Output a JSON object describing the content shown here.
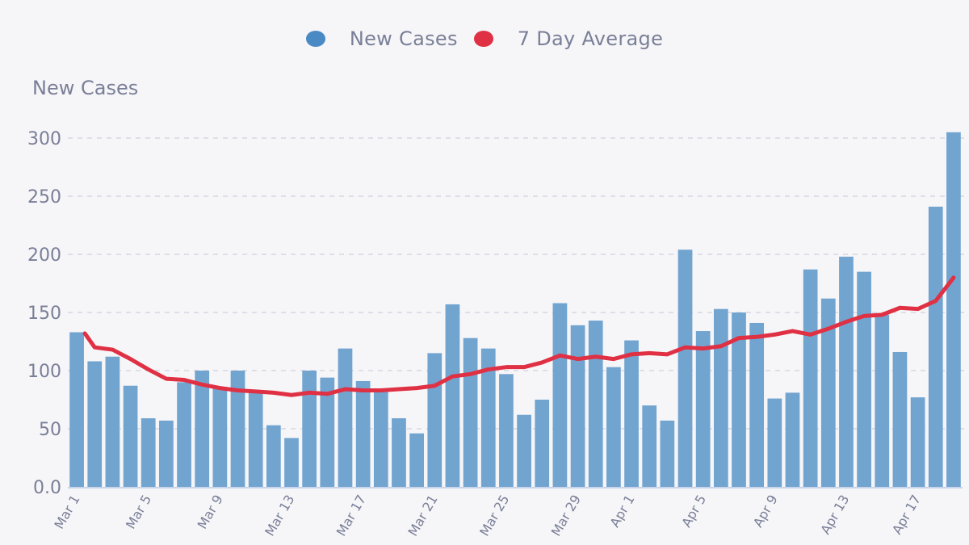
{
  "chart_data": {
    "type": "bar",
    "ylabel": "New Cases",
    "ylim": [
      0,
      300
    ],
    "yticks": [
      "0.0",
      "50",
      "100",
      "150",
      "200",
      "250",
      "300"
    ],
    "ytick_values": [
      0,
      50,
      100,
      150,
      200,
      250,
      300
    ],
    "grid": true,
    "legend_position": "top-center",
    "categories": [
      "Mar 1",
      "Mar 2",
      "Mar 3",
      "Mar 4",
      "Mar 5",
      "Mar 6",
      "Mar 7",
      "Mar 8",
      "Mar 9",
      "Mar 10",
      "Mar 11",
      "Mar 12",
      "Mar 13",
      "Mar 14",
      "Mar 15",
      "Mar 16",
      "Mar 17",
      "Mar 18",
      "Mar 19",
      "Mar 20",
      "Mar 21",
      "Mar 22",
      "Mar 23",
      "Mar 24",
      "Mar 25",
      "Mar 26",
      "Mar 27",
      "Mar 28",
      "Mar 29",
      "Mar 30",
      "Mar 31",
      "Apr 1",
      "Apr 2",
      "Apr 3",
      "Apr 4",
      "Apr 5",
      "Apr 6",
      "Apr 7",
      "Apr 8",
      "Apr 9",
      "Apr 10",
      "Apr 11",
      "Apr 12",
      "Apr 13",
      "Apr 14",
      "Apr 15",
      "Apr 16",
      "Apr 17",
      "Apr 18",
      "Apr 19"
    ],
    "xtick_labels": [
      "Mar 1",
      "Mar 5",
      "Mar 9",
      "Mar 13",
      "Mar 17",
      "Mar 21",
      "Mar 25",
      "Mar 29",
      "Apr 1",
      "Apr 5",
      "Apr 9",
      "Apr 13",
      "Apr 17"
    ],
    "series": [
      {
        "name": "New Cases",
        "type": "bar",
        "color": "#4a8ac4",
        "bar_color": "#72a4d0",
        "values": [
          133,
          108,
          112,
          87,
          59,
          57,
          90,
          100,
          86,
          100,
          83,
          53,
          42,
          100,
          94,
          119,
          91,
          83,
          59,
          46,
          115,
          157,
          128,
          119,
          97,
          62,
          75,
          158,
          139,
          143,
          103,
          126,
          70,
          57,
          204,
          134,
          153,
          150,
          141,
          76,
          81,
          187,
          162,
          198,
          185,
          148,
          116,
          77,
          241,
          305
        ]
      },
      {
        "name": "7 Day Average",
        "type": "line",
        "color": "#e03043",
        "values": [
          132,
          120,
          118,
          110,
          101,
          93,
          92,
          88,
          85,
          83,
          82,
          81,
          79,
          81,
          80,
          84,
          83,
          83,
          84,
          85,
          87,
          95,
          97,
          101,
          103,
          103,
          107,
          113,
          110,
          112,
          110,
          114,
          115,
          114,
          120,
          119,
          121,
          128,
          129,
          131,
          134,
          131,
          136,
          142,
          147,
          148,
          154,
          153,
          160,
          180
        ]
      }
    ]
  }
}
